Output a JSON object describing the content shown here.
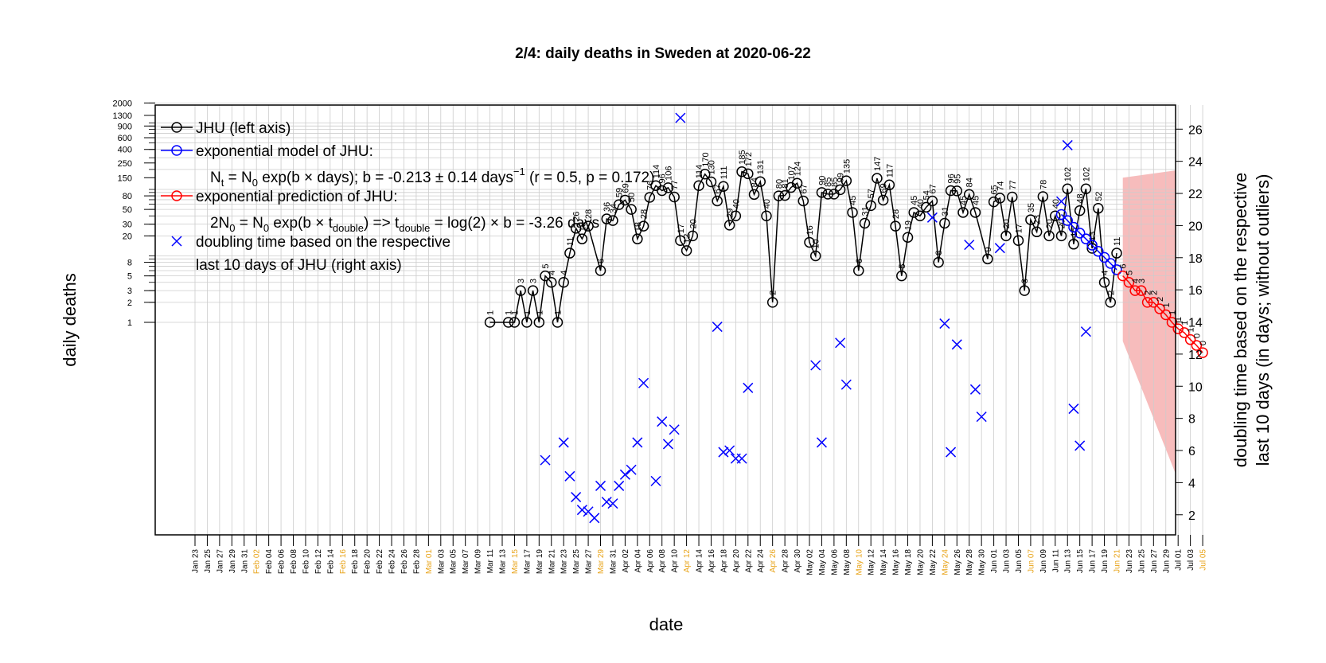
{
  "chart_data": {
    "type": "line",
    "title": "2/4: daily deaths in Sweden at 2020-06-22",
    "xlabel": "date",
    "ylabel_left": "daily deaths",
    "ylabel_right_line1": "doubling time based on the respective",
    "ylabel_right_line2": "last 10 days (in days; without outliers)",
    "y_left_scale": "log",
    "y_left_ticks": [
      1,
      2,
      3,
      5,
      8,
      20,
      30,
      50,
      80,
      150,
      250,
      400,
      600,
      900,
      1300,
      2000
    ],
    "y_right_ticks": [
      2,
      4,
      6,
      8,
      10,
      12,
      14,
      16,
      18,
      20,
      22,
      24,
      26
    ],
    "y_right_range": [
      0.75,
      27.5
    ],
    "x_start": "2020-01-23",
    "x_end": "2020-07-05",
    "x_tick_step_days": 2,
    "x_highlight_weekday": "Sunday",
    "colors": {
      "jhu": "#000000",
      "model": "#0000ff",
      "prediction": "#ff0000",
      "band": "#f4a6a6",
      "highlight_tick": "#e8a317"
    },
    "legend": {
      "position": "top-left",
      "entries": [
        {
          "label": "JHU (left axis)",
          "marker": "line-circle",
          "color": "#000000"
        },
        {
          "label": "exponential model of JHU:",
          "marker": "line-circle",
          "color": "#0000ff"
        },
        {
          "label": "exponential prediction of JHU:",
          "marker": "line-circle",
          "color": "#ff0000"
        },
        {
          "label": "doubling time based on the respective",
          "marker": "cross",
          "color": "#0000ff"
        }
      ],
      "model_formula_a": "N",
      "model_formula_a_sub": "t",
      "model_formula_b": " = N",
      "model_formula_b_sub": "0",
      "model_formula_c": " exp(b × days); b = -0.213 ± 0.14 days",
      "model_formula_sup": "−1",
      "model_formula_d": " (r = 0.5, p = 0.172)",
      "prediction_formula_a": "2N",
      "prediction_formula_a_sub": "0",
      "prediction_formula_b": " = N",
      "prediction_formula_b_sub": "0",
      "prediction_formula_c": " exp(b × t",
      "prediction_formula_c_sub": "double",
      "prediction_formula_d": ") => t",
      "prediction_formula_d_sub": "double",
      "prediction_formula_e": " = log(2) × b = -3.26 days",
      "legend_extra_line": "last 10 days of JHU (right axis)"
    },
    "series_jhu": {
      "name": "JHU (left axis)",
      "points": [
        [
          "2020-03-11",
          1
        ],
        [
          "2020-03-14",
          1
        ],
        [
          "2020-03-15",
          1
        ],
        [
          "2020-03-16",
          3
        ],
        [
          "2020-03-17",
          1
        ],
        [
          "2020-03-18",
          3
        ],
        [
          "2020-03-19",
          1
        ],
        [
          "2020-03-20",
          5
        ],
        [
          "2020-03-21",
          4
        ],
        [
          "2020-03-22",
          1
        ],
        [
          "2020-03-23",
          4
        ],
        [
          "2020-03-24",
          11
        ],
        [
          "2020-03-25",
          26
        ],
        [
          "2020-03-26",
          18
        ],
        [
          "2020-03-27",
          28
        ],
        [
          "2020-03-29",
          6
        ],
        [
          "2020-03-30",
          36
        ],
        [
          "2020-03-31",
          34
        ],
        [
          "2020-04-01",
          59
        ],
        [
          "2020-04-02",
          69
        ],
        [
          "2020-04-03",
          50
        ],
        [
          "2020-04-04",
          18
        ],
        [
          "2020-04-05",
          28
        ],
        [
          "2020-04-06",
          76
        ],
        [
          "2020-04-07",
          114
        ],
        [
          "2020-04-08",
          96
        ],
        [
          "2020-04-09",
          106
        ],
        [
          "2020-04-10",
          77
        ],
        [
          "2020-04-11",
          17
        ],
        [
          "2020-04-12",
          12
        ],
        [
          "2020-04-13",
          20
        ],
        [
          "2020-04-14",
          114
        ],
        [
          "2020-04-15",
          170
        ],
        [
          "2020-04-16",
          130
        ],
        [
          "2020-04-17",
          67
        ],
        [
          "2020-04-18",
          111
        ],
        [
          "2020-04-19",
          29
        ],
        [
          "2020-04-20",
          40
        ],
        [
          "2020-04-21",
          185
        ],
        [
          "2020-04-22",
          172
        ],
        [
          "2020-04-23",
          84
        ],
        [
          "2020-04-24",
          131
        ],
        [
          "2020-04-25",
          40
        ],
        [
          "2020-04-26",
          2
        ],
        [
          "2020-04-27",
          80
        ],
        [
          "2020-04-28",
          81
        ],
        [
          "2020-04-29",
          107
        ],
        [
          "2020-04-30",
          124
        ],
        [
          "2020-05-01",
          67
        ],
        [
          "2020-05-02",
          16
        ],
        [
          "2020-05-03",
          10
        ],
        [
          "2020-05-04",
          90
        ],
        [
          "2020-05-05",
          85
        ],
        [
          "2020-05-06",
          85
        ],
        [
          "2020-05-07",
          99
        ],
        [
          "2020-05-08",
          135
        ],
        [
          "2020-05-09",
          45
        ],
        [
          "2020-05-10",
          6
        ],
        [
          "2020-05-11",
          31
        ],
        [
          "2020-05-12",
          57
        ],
        [
          "2020-05-13",
          147
        ],
        [
          "2020-05-14",
          69
        ],
        [
          "2020-05-15",
          117
        ],
        [
          "2020-05-16",
          28
        ],
        [
          "2020-05-17",
          5
        ],
        [
          "2020-05-18",
          19
        ],
        [
          "2020-05-19",
          45
        ],
        [
          "2020-05-20",
          40
        ],
        [
          "2020-05-21",
          54
        ],
        [
          "2020-05-22",
          67
        ],
        [
          "2020-05-23",
          8
        ],
        [
          "2020-05-24",
          31
        ],
        [
          "2020-05-25",
          96
        ],
        [
          "2020-05-26",
          95
        ],
        [
          "2020-05-27",
          45
        ],
        [
          "2020-05-28",
          84
        ],
        [
          "2020-05-29",
          45
        ],
        [
          "2020-05-31",
          9
        ],
        [
          "2020-06-01",
          65
        ],
        [
          "2020-06-02",
          74
        ],
        [
          "2020-06-03",
          20
        ],
        [
          "2020-06-04",
          77
        ],
        [
          "2020-06-05",
          17
        ],
        [
          "2020-06-06",
          3
        ],
        [
          "2020-06-07",
          35
        ],
        [
          "2020-06-08",
          23
        ],
        [
          "2020-06-09",
          78
        ],
        [
          "2020-06-10",
          20
        ],
        [
          "2020-06-11",
          40
        ],
        [
          "2020-06-12",
          20
        ],
        [
          "2020-06-13",
          102
        ],
        [
          "2020-06-14",
          15
        ],
        [
          "2020-06-15",
          48
        ],
        [
          "2020-06-16",
          102
        ],
        [
          "2020-06-17",
          13
        ],
        [
          "2020-06-18",
          52
        ],
        [
          "2020-06-19",
          4
        ],
        [
          "2020-06-20",
          2
        ],
        [
          "2020-06-21",
          11
        ]
      ]
    },
    "series_model": {
      "name": "exponential model of JHU",
      "points": [
        [
          "2020-06-12",
          42
        ],
        [
          "2020-06-13",
          34
        ],
        [
          "2020-06-14",
          27
        ],
        [
          "2020-06-15",
          22
        ],
        [
          "2020-06-16",
          18
        ],
        [
          "2020-06-17",
          14.5
        ],
        [
          "2020-06-18",
          11.7
        ],
        [
          "2020-06-19",
          9.5
        ],
        [
          "2020-06-20",
          7.7
        ],
        [
          "2020-06-21",
          6.2
        ]
      ]
    },
    "series_prediction": {
      "name": "exponential prediction of JHU",
      "points": [
        [
          "2020-06-22",
          5
        ],
        [
          "2020-06-23",
          4
        ],
        [
          "2020-06-24",
          3
        ],
        [
          "2020-06-25",
          3
        ],
        [
          "2020-06-26",
          2
        ],
        [
          "2020-06-27",
          2
        ],
        [
          "2020-06-28",
          1.6
        ],
        [
          "2020-06-29",
          1.3
        ],
        [
          "2020-06-30",
          1
        ],
        [
          "2020-07-01",
          0.8
        ],
        [
          "2020-07-02",
          0.7
        ],
        [
          "2020-07-03",
          0.55
        ],
        [
          "2020-07-04",
          0.45
        ],
        [
          "2020-07-05",
          0.35
        ]
      ],
      "labels": [
        "6",
        "5",
        "4",
        "3",
        "2",
        "2",
        "2",
        "1",
        "1",
        "1",
        "1",
        "1",
        "0",
        "0"
      ]
    },
    "prediction_band": {
      "x_start": "2020-06-22",
      "x_end": "2020-07-05",
      "upper_start": 150,
      "upper_end": 220,
      "lower_start": 0.52,
      "lower_end": 0.0005
    },
    "series_doubling": {
      "name": "doubling time based on the respective last 10 days of JHU (right axis)",
      "points": [
        [
          "2020-03-20",
          5.4
        ],
        [
          "2020-03-23",
          6.5
        ],
        [
          "2020-03-24",
          4.4
        ],
        [
          "2020-03-25",
          3.1
        ],
        [
          "2020-03-26",
          2.3
        ],
        [
          "2020-03-27",
          2.2
        ],
        [
          "2020-03-28",
          1.8
        ],
        [
          "2020-03-29",
          3.8
        ],
        [
          "2020-03-30",
          2.8
        ],
        [
          "2020-03-31",
          2.7
        ],
        [
          "2020-04-01",
          3.8
        ],
        [
          "2020-04-02",
          4.5
        ],
        [
          "2020-04-03",
          4.8
        ],
        [
          "2020-04-04",
          6.5
        ],
        [
          "2020-04-05",
          10.2
        ],
        [
          "2020-04-07",
          4.1
        ],
        [
          "2020-04-08",
          7.8
        ],
        [
          "2020-04-09",
          6.4
        ],
        [
          "2020-04-10",
          7.3
        ],
        [
          "2020-04-11",
          26.7
        ],
        [
          "2020-04-17",
          13.7
        ],
        [
          "2020-04-18",
          5.9
        ],
        [
          "2020-04-19",
          6.0
        ],
        [
          "2020-04-20",
          5.5
        ],
        [
          "2020-04-21",
          5.5
        ],
        [
          "2020-04-22",
          9.9
        ],
        [
          "2020-05-03",
          11.3
        ],
        [
          "2020-05-04",
          6.5
        ],
        [
          "2020-05-07",
          12.7
        ],
        [
          "2020-05-08",
          10.1
        ],
        [
          "2020-05-22",
          20.5
        ],
        [
          "2020-05-24",
          13.9
        ],
        [
          "2020-05-25",
          5.9
        ],
        [
          "2020-05-26",
          12.6
        ],
        [
          "2020-05-28",
          18.8
        ],
        [
          "2020-05-29",
          9.8
        ],
        [
          "2020-05-30",
          8.1
        ],
        [
          "2020-06-02",
          18.6
        ],
        [
          "2020-06-12",
          21.5
        ],
        [
          "2020-06-13",
          25.0
        ],
        [
          "2020-06-14",
          8.6
        ],
        [
          "2020-06-15",
          6.3
        ],
        [
          "2020-06-16",
          13.4
        ]
      ]
    }
  }
}
